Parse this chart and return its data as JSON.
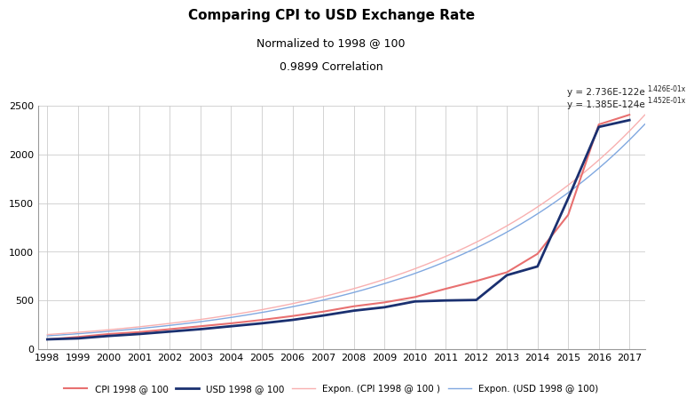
{
  "title": "Comparing CPI to USD Exchange Rate",
  "subtitle1": "Normalized to 1998 @ 100",
  "subtitle2": "0.9899 Correlation",
  "years": [
    1998,
    1999,
    2000,
    2001,
    2002,
    2003,
    2004,
    2005,
    2006,
    2007,
    2008,
    2009,
    2010,
    2011,
    2012,
    2013,
    2014,
    2015,
    2016,
    2017
  ],
  "cpi": [
    100,
    125,
    155,
    175,
    205,
    235,
    265,
    300,
    340,
    385,
    440,
    480,
    535,
    620,
    700,
    790,
    980,
    1380,
    2310,
    2410
  ],
  "usd": [
    100,
    110,
    135,
    155,
    180,
    205,
    235,
    265,
    300,
    345,
    395,
    430,
    490,
    500,
    505,
    760,
    850,
    1550,
    2285,
    2355
  ],
  "cpi_color": "#E87070",
  "usd_color": "#1A3070",
  "expon_cpi_color": "#F8B0B0",
  "expon_usd_color": "#80A8E0",
  "A_cpi": 2.736e-122,
  "b_cpi": 0.1426,
  "A_usd": 1.385e-124,
  "b_usd": 0.1452,
  "ylim": [
    0,
    2500
  ],
  "yticks": [
    0,
    500,
    1000,
    1500,
    2000,
    2500
  ],
  "background_color": "#FFFFFF",
  "grid_color": "#CCCCCC",
  "legend_labels": [
    "CPI 1998 @ 100",
    "USD 1998 @ 100",
    "Expon. (CPI 1998 @ 100 )",
    "Expon. (USD 1998 @ 100)"
  ],
  "legend_colors": [
    "#E87070",
    "#1A3070",
    "#F8B0B0",
    "#80A8E0"
  ]
}
